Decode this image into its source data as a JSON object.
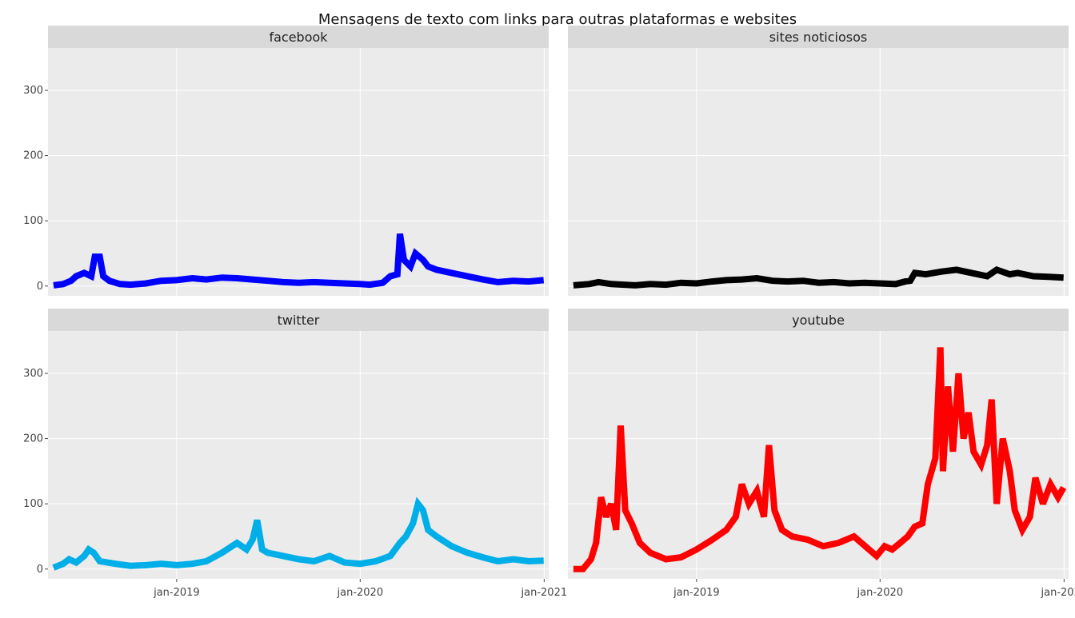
{
  "chart_data": {
    "type": "line",
    "title": "Mensagens de texto com links para outras plataformas e websites",
    "xlabel": "",
    "ylabel": "",
    "ylim": [
      -15,
      365
    ],
    "xlim": [
      "2018-04-20",
      "2021-01-10"
    ],
    "y_ticks": [
      0,
      100,
      200,
      300
    ],
    "y_tick_labels": [
      "0",
      "100",
      "200",
      "300"
    ],
    "x_ticks": [
      "2019-01-01",
      "2020-01-01",
      "2021-01-01"
    ],
    "x_tick_labels": [
      "jan-2019",
      "jan-2020",
      "jan-2021"
    ],
    "grid": true,
    "facets": [
      {
        "name": "facebook",
        "color": "#0000ff",
        "points": [
          [
            "2018-05-01",
            1
          ],
          [
            "2018-05-20",
            3
          ],
          [
            "2018-06-05",
            8
          ],
          [
            "2018-06-15",
            15
          ],
          [
            "2018-07-01",
            20
          ],
          [
            "2018-07-15",
            15
          ],
          [
            "2018-07-22",
            45
          ],
          [
            "2018-08-01",
            45
          ],
          [
            "2018-08-08",
            15
          ],
          [
            "2018-08-20",
            8
          ],
          [
            "2018-09-10",
            3
          ],
          [
            "2018-10-01",
            2
          ],
          [
            "2018-11-01",
            4
          ],
          [
            "2018-12-01",
            8
          ],
          [
            "2019-01-01",
            9
          ],
          [
            "2019-02-01",
            12
          ],
          [
            "2019-03-01",
            10
          ],
          [
            "2019-04-01",
            13
          ],
          [
            "2019-05-01",
            12
          ],
          [
            "2019-06-01",
            10
          ],
          [
            "2019-07-01",
            8
          ],
          [
            "2019-08-01",
            6
          ],
          [
            "2019-09-01",
            5
          ],
          [
            "2019-10-01",
            6
          ],
          [
            "2019-11-01",
            5
          ],
          [
            "2019-12-01",
            4
          ],
          [
            "2020-01-01",
            3
          ],
          [
            "2020-01-20",
            2
          ],
          [
            "2020-02-15",
            5
          ],
          [
            "2020-03-01",
            15
          ],
          [
            "2020-03-15",
            18
          ],
          [
            "2020-03-20",
            80
          ],
          [
            "2020-03-28",
            40
          ],
          [
            "2020-04-10",
            30
          ],
          [
            "2020-04-20",
            50
          ],
          [
            "2020-05-05",
            40
          ],
          [
            "2020-05-15",
            30
          ],
          [
            "2020-06-01",
            25
          ],
          [
            "2020-07-01",
            20
          ],
          [
            "2020-08-01",
            15
          ],
          [
            "2020-09-01",
            10
          ],
          [
            "2020-10-01",
            6
          ],
          [
            "2020-11-01",
            8
          ],
          [
            "2020-12-01",
            7
          ],
          [
            "2020-12-31",
            9
          ]
        ]
      },
      {
        "name": "sites noticiosos",
        "color": "#000000",
        "points": [
          [
            "2018-05-01",
            1
          ],
          [
            "2018-06-01",
            3
          ],
          [
            "2018-06-20",
            6
          ],
          [
            "2018-07-15",
            3
          ],
          [
            "2018-09-01",
            1
          ],
          [
            "2018-10-01",
            3
          ],
          [
            "2018-11-01",
            2
          ],
          [
            "2018-12-01",
            5
          ],
          [
            "2019-01-01",
            4
          ],
          [
            "2019-02-01",
            7
          ],
          [
            "2019-03-01",
            9
          ],
          [
            "2019-04-01",
            10
          ],
          [
            "2019-05-01",
            12
          ],
          [
            "2019-06-01",
            8
          ],
          [
            "2019-07-01",
            7
          ],
          [
            "2019-08-01",
            8
          ],
          [
            "2019-09-01",
            5
          ],
          [
            "2019-10-01",
            6
          ],
          [
            "2019-11-01",
            4
          ],
          [
            "2019-12-01",
            5
          ],
          [
            "2020-01-01",
            4
          ],
          [
            "2020-02-01",
            3
          ],
          [
            "2020-02-20",
            7
          ],
          [
            "2020-03-01",
            8
          ],
          [
            "2020-03-10",
            20
          ],
          [
            "2020-04-01",
            18
          ],
          [
            "2020-05-01",
            22
          ],
          [
            "2020-06-01",
            25
          ],
          [
            "2020-07-01",
            20
          ],
          [
            "2020-08-01",
            15
          ],
          [
            "2020-08-20",
            25
          ],
          [
            "2020-09-15",
            18
          ],
          [
            "2020-10-01",
            20
          ],
          [
            "2020-11-01",
            15
          ],
          [
            "2020-12-01",
            14
          ],
          [
            "2020-12-31",
            13
          ]
        ]
      },
      {
        "name": "twitter",
        "color": "#00aee8",
        "points": [
          [
            "2018-05-01",
            2
          ],
          [
            "2018-05-20",
            8
          ],
          [
            "2018-06-01",
            15
          ],
          [
            "2018-06-15",
            10
          ],
          [
            "2018-07-01",
            20
          ],
          [
            "2018-07-10",
            30
          ],
          [
            "2018-07-20",
            25
          ],
          [
            "2018-08-01",
            12
          ],
          [
            "2018-09-01",
            8
          ],
          [
            "2018-10-01",
            5
          ],
          [
            "2018-11-01",
            6
          ],
          [
            "2018-12-01",
            8
          ],
          [
            "2019-01-01",
            6
          ],
          [
            "2019-02-01",
            8
          ],
          [
            "2019-03-01",
            12
          ],
          [
            "2019-04-01",
            25
          ],
          [
            "2019-05-01",
            40
          ],
          [
            "2019-05-20",
            30
          ],
          [
            "2019-06-01",
            45
          ],
          [
            "2019-06-10",
            75
          ],
          [
            "2019-06-20",
            30
          ],
          [
            "2019-07-01",
            25
          ],
          [
            "2019-08-01",
            20
          ],
          [
            "2019-09-01",
            15
          ],
          [
            "2019-10-01",
            12
          ],
          [
            "2019-11-01",
            20
          ],
          [
            "2019-12-01",
            10
          ],
          [
            "2020-01-01",
            8
          ],
          [
            "2020-02-01",
            12
          ],
          [
            "2020-03-01",
            20
          ],
          [
            "2020-03-20",
            40
          ],
          [
            "2020-04-01",
            50
          ],
          [
            "2020-04-15",
            70
          ],
          [
            "2020-04-25",
            100
          ],
          [
            "2020-05-05",
            90
          ],
          [
            "2020-05-15",
            60
          ],
          [
            "2020-06-01",
            50
          ],
          [
            "2020-07-01",
            35
          ],
          [
            "2020-08-01",
            25
          ],
          [
            "2020-09-01",
            18
          ],
          [
            "2020-10-01",
            12
          ],
          [
            "2020-11-01",
            15
          ],
          [
            "2020-12-01",
            12
          ],
          [
            "2020-12-31",
            13
          ]
        ]
      },
      {
        "name": "youtube",
        "color": "#ff0000",
        "points": [
          [
            "2018-05-01",
            0
          ],
          [
            "2018-05-20",
            0
          ],
          [
            "2018-06-05",
            15
          ],
          [
            "2018-06-15",
            40
          ],
          [
            "2018-06-25",
            110
          ],
          [
            "2018-07-05",
            80
          ],
          [
            "2018-07-15",
            100
          ],
          [
            "2018-07-25",
            60
          ],
          [
            "2018-08-03",
            220
          ],
          [
            "2018-08-12",
            90
          ],
          [
            "2018-08-25",
            70
          ],
          [
            "2018-09-10",
            40
          ],
          [
            "2018-10-01",
            25
          ],
          [
            "2018-11-01",
            15
          ],
          [
            "2018-12-01",
            18
          ],
          [
            "2019-01-01",
            30
          ],
          [
            "2019-02-01",
            45
          ],
          [
            "2019-03-01",
            60
          ],
          [
            "2019-03-20",
            80
          ],
          [
            "2019-04-01",
            130
          ],
          [
            "2019-04-15",
            100
          ],
          [
            "2019-05-01",
            120
          ],
          [
            "2019-05-15",
            80
          ],
          [
            "2019-05-25",
            190
          ],
          [
            "2019-06-05",
            90
          ],
          [
            "2019-06-20",
            60
          ],
          [
            "2019-07-10",
            50
          ],
          [
            "2019-08-10",
            45
          ],
          [
            "2019-09-10",
            35
          ],
          [
            "2019-10-10",
            40
          ],
          [
            "2019-11-10",
            50
          ],
          [
            "2019-12-10",
            30
          ],
          [
            "2019-12-25",
            20
          ],
          [
            "2020-01-10",
            35
          ],
          [
            "2020-01-25",
            30
          ],
          [
            "2020-02-10",
            40
          ],
          [
            "2020-02-25",
            50
          ],
          [
            "2020-03-10",
            65
          ],
          [
            "2020-03-25",
            70
          ],
          [
            "2020-04-05",
            130
          ],
          [
            "2020-04-20",
            170
          ],
          [
            "2020-04-30",
            340
          ],
          [
            "2020-05-05",
            150
          ],
          [
            "2020-05-15",
            280
          ],
          [
            "2020-05-25",
            180
          ],
          [
            "2020-06-05",
            300
          ],
          [
            "2020-06-15",
            200
          ],
          [
            "2020-06-25",
            240
          ],
          [
            "2020-07-05",
            180
          ],
          [
            "2020-07-20",
            160
          ],
          [
            "2020-08-01",
            190
          ],
          [
            "2020-08-10",
            260
          ],
          [
            "2020-08-20",
            100
          ],
          [
            "2020-09-01",
            200
          ],
          [
            "2020-09-15",
            150
          ],
          [
            "2020-09-25",
            90
          ],
          [
            "2020-10-10",
            60
          ],
          [
            "2020-10-25",
            80
          ],
          [
            "2020-11-05",
            140
          ],
          [
            "2020-11-20",
            100
          ],
          [
            "2020-12-05",
            130
          ],
          [
            "2020-12-20",
            110
          ],
          [
            "2020-12-31",
            125
          ]
        ]
      }
    ]
  }
}
